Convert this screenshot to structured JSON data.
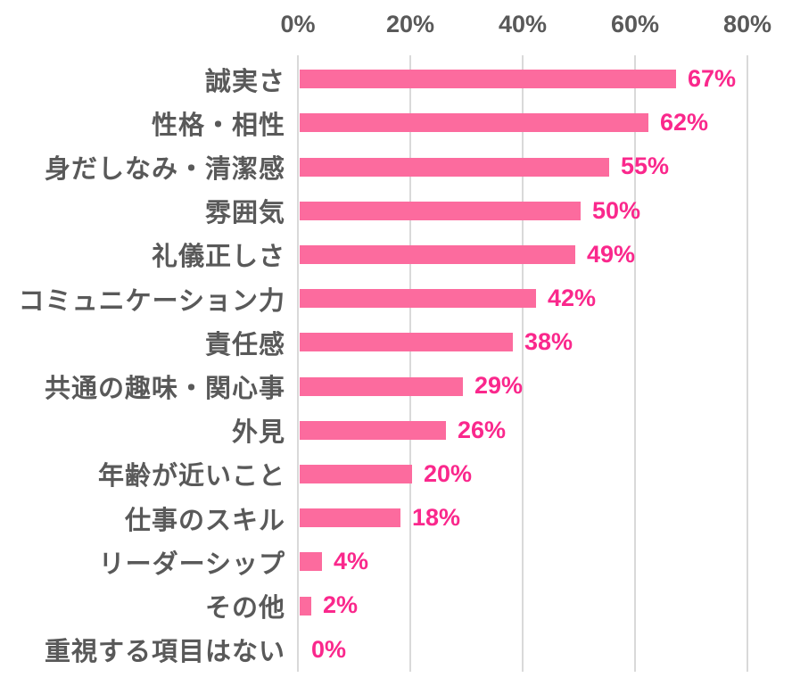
{
  "chart_data": {
    "type": "bar",
    "orientation": "horizontal",
    "title": "",
    "xlabel": "",
    "ylabel": "",
    "categories": [
      "誠実さ",
      "性格・相性",
      "身だしなみ・清潔感",
      "雰囲気",
      "礼儀正しさ",
      "コミュニケーション力",
      "責任感",
      "共通の趣味・関心事",
      "外見",
      "年齢が近いこと",
      "仕事のスキル",
      "リーダーシップ",
      "その他",
      "重視する項目はない"
    ],
    "values": [
      67,
      62,
      55,
      50,
      49,
      42,
      38,
      29,
      26,
      20,
      18,
      4,
      2,
      0
    ],
    "value_labels": [
      "67%",
      "62%",
      "55%",
      "50%",
      "49%",
      "42%",
      "38%",
      "29%",
      "26%",
      "20%",
      "18%",
      "4%",
      "2%",
      "0%"
    ],
    "x_ticks": {
      "labels": [
        "0%",
        "20%",
        "40%",
        "60%",
        "80%"
      ],
      "values": [
        0,
        20,
        40,
        60,
        80
      ]
    },
    "xlim": [
      0,
      80
    ],
    "grid": true,
    "legend": false,
    "axis_position": "top",
    "colors": {
      "bar": "#fc6b9e",
      "value_label": "#fa288c",
      "axis_text": "#595959",
      "category_text": "#595959",
      "gridline": "#d9d9d9",
      "background": "#ffffff"
    }
  }
}
